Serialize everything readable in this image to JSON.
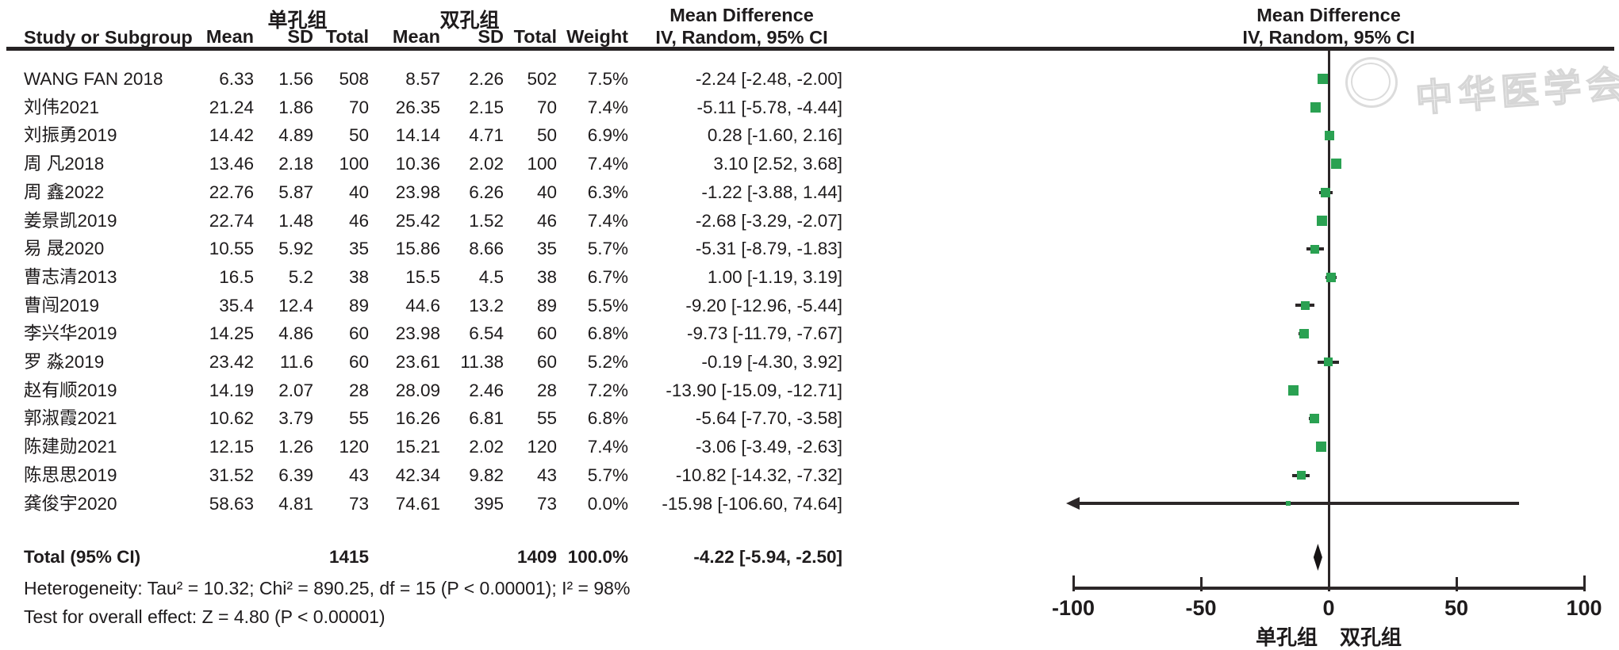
{
  "header": {
    "group1": "单孔组",
    "group2": "双孔组",
    "study_col": "Study or Subgroup",
    "mean_col": "Mean",
    "sd_col": "SD",
    "total_col": "Total",
    "weight_col": "Weight",
    "md_title": "Mean Difference",
    "md_subtitle": "IV, Random, 95% CI"
  },
  "watermark": {
    "text": "中华医学会"
  },
  "colors": {
    "marker_green": "#2aa152",
    "line_black": "#2c2728",
    "text": "#1e1b1c",
    "watermark_gray": "#d6d6d6"
  },
  "chart_data": {
    "type": "forest",
    "effect_measure": "Mean Difference, IV, Random, 95% CI",
    "axis": {
      "min": -100,
      "max": 100,
      "ticks": [
        -100,
        -50,
        0,
        50,
        100
      ],
      "favours_left": "单孔组",
      "favours_right": "双孔组"
    },
    "studies": [
      {
        "study": "WANG FAN 2018",
        "mean1": "6.33",
        "sd1": "1.56",
        "total1": "508",
        "mean2": "8.57",
        "sd2": "2.26",
        "total2": "502",
        "weight": "7.5%",
        "w": 7.5,
        "md_label": "-2.24 [-2.48, -2.00]",
        "est": -2.24,
        "lo": -2.48,
        "hi": -2.0
      },
      {
        "study": "刘伟2021",
        "mean1": "21.24",
        "sd1": "1.86",
        "total1": "70",
        "mean2": "26.35",
        "sd2": "2.15",
        "total2": "70",
        "weight": "7.4%",
        "w": 7.4,
        "md_label": "-5.11 [-5.78, -4.44]",
        "est": -5.11,
        "lo": -5.78,
        "hi": -4.44
      },
      {
        "study": "刘振勇2019",
        "mean1": "14.42",
        "sd1": "4.89",
        "total1": "50",
        "mean2": "14.14",
        "sd2": "4.71",
        "total2": "50",
        "weight": "6.9%",
        "w": 6.9,
        "md_label": "0.28 [-1.60, 2.16]",
        "est": 0.28,
        "lo": -1.6,
        "hi": 2.16
      },
      {
        "study": "周 凡2018",
        "mean1": "13.46",
        "sd1": "2.18",
        "total1": "100",
        "mean2": "10.36",
        "sd2": "2.02",
        "total2": "100",
        "weight": "7.4%",
        "w": 7.4,
        "md_label": "3.10 [2.52, 3.68]",
        "est": 3.1,
        "lo": 2.52,
        "hi": 3.68
      },
      {
        "study": "周 鑫2022",
        "mean1": "22.76",
        "sd1": "5.87",
        "total1": "40",
        "mean2": "23.98",
        "sd2": "6.26",
        "total2": "40",
        "weight": "6.3%",
        "w": 6.3,
        "md_label": "-1.22 [-3.88, 1.44]",
        "est": -1.22,
        "lo": -3.88,
        "hi": 1.44
      },
      {
        "study": "姜景凯2019",
        "mean1": "22.74",
        "sd1": "1.48",
        "total1": "46",
        "mean2": "25.42",
        "sd2": "1.52",
        "total2": "46",
        "weight": "7.4%",
        "w": 7.4,
        "md_label": "-2.68 [-3.29, -2.07]",
        "est": -2.68,
        "lo": -3.29,
        "hi": -2.07
      },
      {
        "study": "易 晟2020",
        "mean1": "10.55",
        "sd1": "5.92",
        "total1": "35",
        "mean2": "15.86",
        "sd2": "8.66",
        "total2": "35",
        "weight": "5.7%",
        "w": 5.7,
        "md_label": "-5.31 [-8.79, -1.83]",
        "est": -5.31,
        "lo": -8.79,
        "hi": -1.83
      },
      {
        "study": "曹志清2013",
        "mean1": "16.5",
        "sd1": "5.2",
        "total1": "38",
        "mean2": "15.5",
        "sd2": "4.5",
        "total2": "38",
        "weight": "6.7%",
        "w": 6.7,
        "md_label": "1.00 [-1.19, 3.19]",
        "est": 1.0,
        "lo": -1.19,
        "hi": 3.19
      },
      {
        "study": "曹闯2019",
        "mean1": "35.4",
        "sd1": "12.4",
        "total1": "89",
        "mean2": "44.6",
        "sd2": "13.2",
        "total2": "89",
        "weight": "5.5%",
        "w": 5.5,
        "md_label": "-9.20 [-12.96, -5.44]",
        "est": -9.2,
        "lo": -12.96,
        "hi": -5.44
      },
      {
        "study": "李兴华2019",
        "mean1": "14.25",
        "sd1": "4.86",
        "total1": "60",
        "mean2": "23.98",
        "sd2": "6.54",
        "total2": "60",
        "weight": "6.8%",
        "w": 6.8,
        "md_label": "-9.73 [-11.79, -7.67]",
        "est": -9.73,
        "lo": -11.79,
        "hi": -7.67
      },
      {
        "study": "罗 淼2019",
        "mean1": "23.42",
        "sd1": "11.6",
        "total1": "60",
        "mean2": "23.61",
        "sd2": "11.38",
        "total2": "60",
        "weight": "5.2%",
        "w": 5.2,
        "md_label": "-0.19 [-4.30, 3.92]",
        "est": -0.19,
        "lo": -4.3,
        "hi": 3.92
      },
      {
        "study": "赵有顺2019",
        "mean1": "14.19",
        "sd1": "2.07",
        "total1": "28",
        "mean2": "28.09",
        "sd2": "2.46",
        "total2": "28",
        "weight": "7.2%",
        "w": 7.2,
        "md_label": "-13.90 [-15.09, -12.71]",
        "est": -13.9,
        "lo": -15.09,
        "hi": -12.71
      },
      {
        "study": "郭淑霞2021",
        "mean1": "10.62",
        "sd1": "3.79",
        "total1": "55",
        "mean2": "16.26",
        "sd2": "6.81",
        "total2": "55",
        "weight": "6.8%",
        "w": 6.8,
        "md_label": "-5.64 [-7.70, -3.58]",
        "est": -5.64,
        "lo": -7.7,
        "hi": -3.58
      },
      {
        "study": "陈建勋2021",
        "mean1": "12.15",
        "sd1": "1.26",
        "total1": "120",
        "mean2": "15.21",
        "sd2": "2.02",
        "total2": "120",
        "weight": "7.4%",
        "w": 7.4,
        "md_label": "-3.06 [-3.49, -2.63]",
        "est": -3.06,
        "lo": -3.49,
        "hi": -2.63
      },
      {
        "study": "陈思思2019",
        "mean1": "31.52",
        "sd1": "6.39",
        "total1": "43",
        "mean2": "42.34",
        "sd2": "9.82",
        "total2": "43",
        "weight": "5.7%",
        "w": 5.7,
        "md_label": "-10.82 [-14.32, -7.32]",
        "est": -10.82,
        "lo": -14.32,
        "hi": -7.32
      },
      {
        "study": "龚俊宇2020",
        "mean1": "58.63",
        "sd1": "4.81",
        "total1": "73",
        "mean2": "74.61",
        "sd2": "395",
        "total2": "73",
        "weight": "0.0%",
        "w": 0.0,
        "md_label": "-15.98 [-106.60, 74.64]",
        "est": -15.98,
        "lo": -106.6,
        "hi": 74.64
      }
    ],
    "total": {
      "label": "Total (95% CI)",
      "total1": "1415",
      "total2": "1409",
      "weight": "100.0%",
      "md_label": "-4.22 [-5.94, -2.50]",
      "est": -4.22,
      "lo": -5.94,
      "hi": -2.5
    },
    "footer": {
      "heterogeneity": "Heterogeneity: Tau² = 10.32; Chi² = 890.25, df = 15 (P < 0.00001); I² = 98%",
      "overall_effect": "Test for overall effect: Z = 4.80 (P < 0.00001)"
    }
  }
}
